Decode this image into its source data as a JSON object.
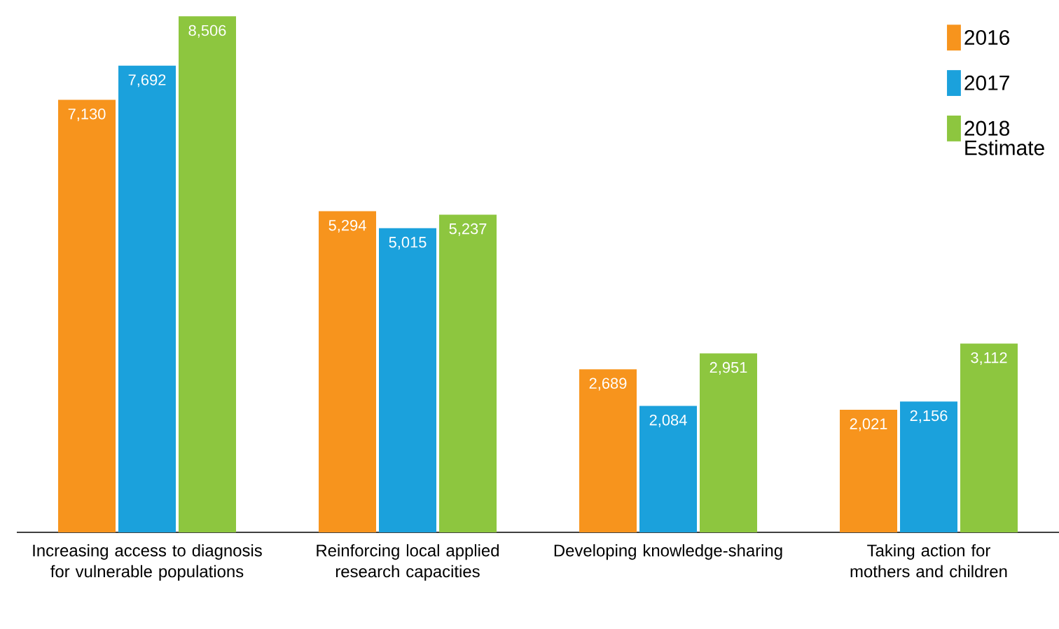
{
  "chart_data": {
    "type": "bar",
    "categories": [
      "Increasing access to diagnosis for vulnerable populations",
      "Reinforcing local applied research capacities",
      "Developing knowledge-sharing",
      "Taking action for mothers and children"
    ],
    "series": [
      {
        "name": "2016",
        "color": "#f7941d",
        "values": [
          7130,
          5294,
          2689,
          2021
        ],
        "value_labels": [
          "7,130",
          "5,294",
          "2,689",
          "2,021"
        ]
      },
      {
        "name": "2017",
        "color": "#1ba1dc",
        "values": [
          7692,
          5015,
          2084,
          2156
        ],
        "value_labels": [
          "7,692",
          "5,015",
          "2,084",
          "2,156"
        ]
      },
      {
        "name": "2018 Estimate",
        "color": "#8dc63f",
        "values": [
          8506,
          5237,
          2951,
          3112
        ],
        "value_labels": [
          "8,506",
          "5,237",
          "2,951",
          "3,112"
        ]
      }
    ],
    "legend": "top right"
  }
}
